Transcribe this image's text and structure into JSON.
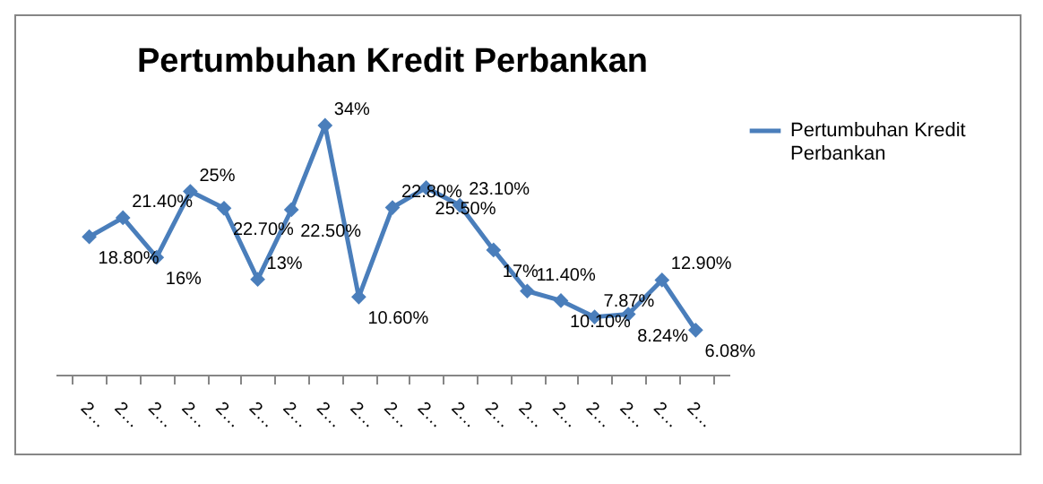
{
  "chart_data": {
    "type": "line",
    "title": "Pertumbuhan Kredit Perbankan",
    "categories": [
      "2…",
      "2…",
      "2…",
      "2…",
      "2…",
      "2…",
      "2…",
      "2…",
      "2…",
      "2…",
      "2…",
      "2…",
      "2…",
      "2…",
      "2…",
      "2…",
      "2…",
      "2…",
      "2…"
    ],
    "series": [
      {
        "name": "Pertumbuhan Kredit Perbankan",
        "color": "#4a7ebb",
        "values": [
          18.8,
          21.4,
          16,
          25,
          22.7,
          13,
          22.5,
          34,
          10.6,
          22.8,
          25.5,
          23.1,
          17,
          11.4,
          10.1,
          7.87,
          8.24,
          12.9,
          6.08
        ],
        "value_labels": [
          "18.80%",
          "21.40%",
          "16%",
          "25%",
          "22.70%",
          "13%",
          "22.50%",
          "34%",
          "10.60%",
          "22.80%",
          "25.50%",
          "23.10%",
          "17%",
          "11.40%",
          "10.10%",
          "7.87%",
          "8.24%",
          "12.90%",
          "6.08%"
        ]
      }
    ],
    "legend": "right",
    "marker": "diamond"
  }
}
